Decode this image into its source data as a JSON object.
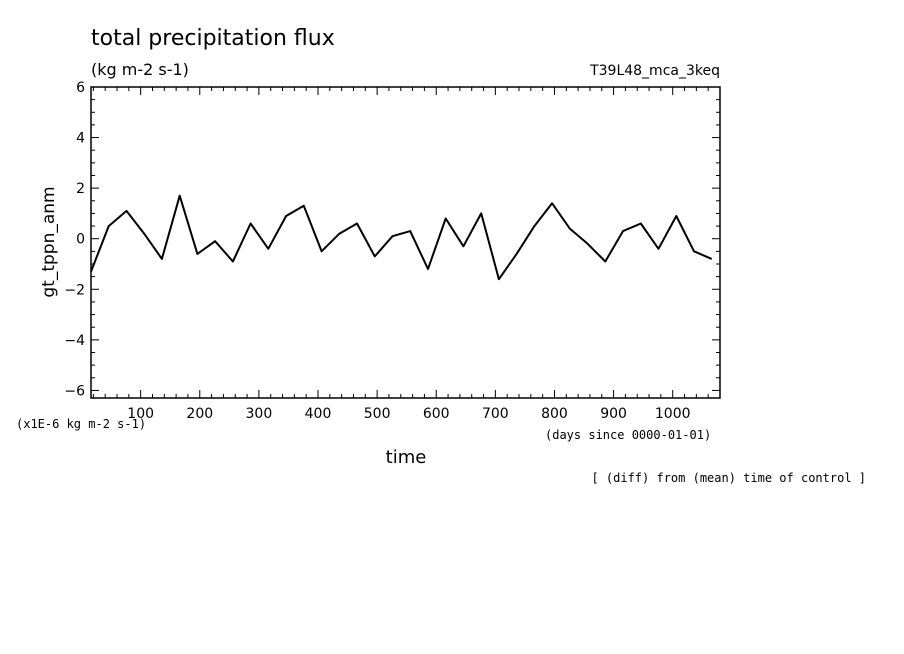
{
  "chart_data": {
    "type": "line",
    "title": "total precipitation flux",
    "subtitle": "(kg m-2 s-1)",
    "run_label": "T39L48_mca_3keq",
    "xlabel": "time",
    "x_unit": "(days since 0000-01-01)",
    "ylabel": "gt_tppn_anm",
    "y_unit": "(x1E-6 kg m-2 s-1)",
    "footnote": "[ (diff) from (mean) time of control ]",
    "xlim": [
      16,
      1080
    ],
    "ylim": [
      -6.3,
      6.0
    ],
    "x_ticks": [
      100,
      200,
      300,
      400,
      500,
      600,
      700,
      800,
      900,
      1000
    ],
    "y_ticks": [
      -6,
      -4,
      -2,
      0,
      2,
      4,
      6
    ],
    "grid": false,
    "legend": "none",
    "line_color": "#000000",
    "series": [
      {
        "x": [
          16,
          46,
          76,
          106,
          136,
          166,
          196,
          226,
          256,
          286,
          316,
          346,
          376,
          406,
          436,
          466,
          496,
          526,
          556,
          586,
          616,
          646,
          676,
          706,
          736,
          766,
          796,
          826,
          856,
          886,
          916,
          946,
          976,
          1006,
          1036,
          1066
        ],
        "values": [
          -1.3,
          0.5,
          1.1,
          0.2,
          -0.8,
          1.7,
          -0.6,
          -0.1,
          -0.9,
          0.6,
          -0.4,
          0.9,
          1.3,
          -0.5,
          0.2,
          0.6,
          -0.7,
          0.1,
          0.3,
          -1.2,
          0.8,
          -0.3,
          1.0,
          -1.6,
          -0.6,
          0.5,
          1.4,
          0.4,
          -0.2,
          -0.9,
          0.3,
          0.6,
          -0.4,
          0.9,
          -0.5,
          -0.8
        ]
      }
    ]
  }
}
